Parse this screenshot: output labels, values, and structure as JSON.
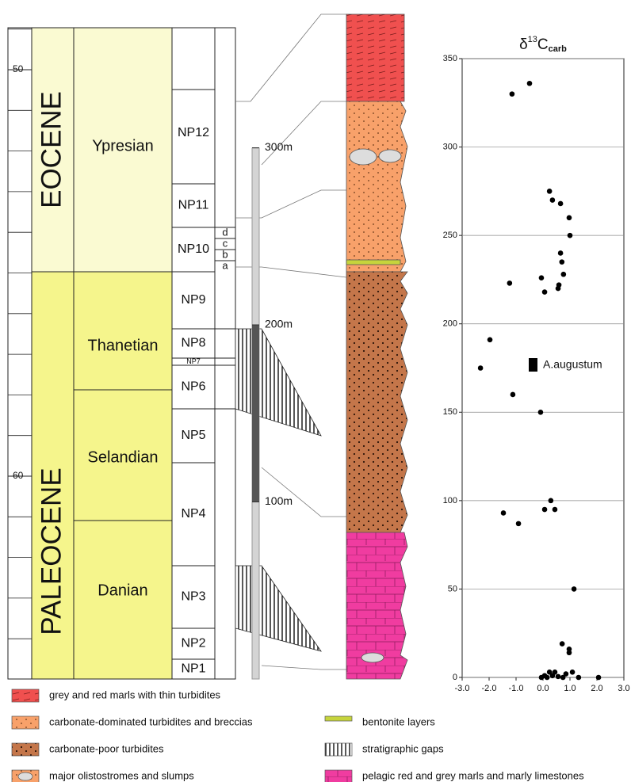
{
  "strat": {
    "age_ticks": [
      -50,
      -60
    ],
    "epochs": [
      "EOCENE",
      "PALEOCENE"
    ],
    "stages": [
      "Ypresian",
      "Thanetian",
      "Selandian",
      "Danian"
    ],
    "zones": [
      "NP12",
      "NP11",
      "NP10",
      "NP9",
      "NP8",
      "NP7",
      "NP6",
      "NP5",
      "NP4",
      "NP3",
      "NP2",
      "NP1"
    ],
    "subzones": [
      "d",
      "c",
      "b",
      "a"
    ],
    "meter_ticks": [
      {
        "value": 300,
        "label": "300m"
      },
      {
        "value": 200,
        "label": "200m"
      },
      {
        "value": 100,
        "label": "100m"
      }
    ]
  },
  "chart_data": {
    "type": "scatter",
    "title": {
      "symbol": "δ",
      "sup": "13",
      "base": "C",
      "sub": "carb"
    },
    "x": [
      -0.5,
      -1.15,
      0.24,
      0.35,
      0.65,
      0.97,
      1.0,
      0.65,
      0.7,
      0.76,
      0.59,
      0.56,
      -0.06,
      0.06,
      -1.24,
      -1.97,
      -2.32,
      -1.12,
      -0.09,
      0.29,
      0.44,
      0.06,
      -1.47,
      -0.91,
      1.15,
      0.71,
      0.97,
      0.97,
      0.24,
      0.35,
      -0.06,
      0.56,
      0.85,
      1.09,
      0.15,
      0.74,
      1.32,
      2.06,
      0.44,
      0.06
    ],
    "values": [
      336,
      330,
      275,
      270,
      268,
      260,
      250,
      240,
      235,
      228,
      222,
      220,
      226,
      218,
      223,
      191,
      175,
      160,
      150,
      100,
      95,
      95,
      93,
      87,
      50,
      19,
      16,
      14,
      3,
      1,
      0,
      0.5,
      2,
      3,
      0,
      0,
      0,
      0,
      3,
      1
    ],
    "color": "#000000",
    "xlim": [
      -3,
      3
    ],
    "xticks": [
      {
        "value": -3,
        "label": "-3.0"
      },
      {
        "value": -2,
        "label": "-2.0"
      },
      {
        "value": -1,
        "label": "-1.0"
      },
      {
        "value": 0,
        "label": "0.0"
      },
      {
        "value": 1,
        "label": "1.0"
      },
      {
        "value": 2,
        "label": "2.0"
      },
      {
        "value": 3,
        "label": "3.0"
      }
    ],
    "ylim": [
      0,
      350
    ],
    "yticks": [
      0,
      50,
      100,
      150,
      200,
      250,
      300,
      350
    ],
    "grid": true,
    "annotations": [
      {
        "text": "A.augustum"
      }
    ]
  },
  "legend": [
    "grey and red marls with thin turbidites",
    "carbonate-dominated turbidites and breccias",
    "carbonate-poor turbidites",
    "major olistostromes and slumps",
    "bentonite layers",
    "stratigraphic gaps",
    "pelagic red and grey marls and marly limestones"
  ]
}
